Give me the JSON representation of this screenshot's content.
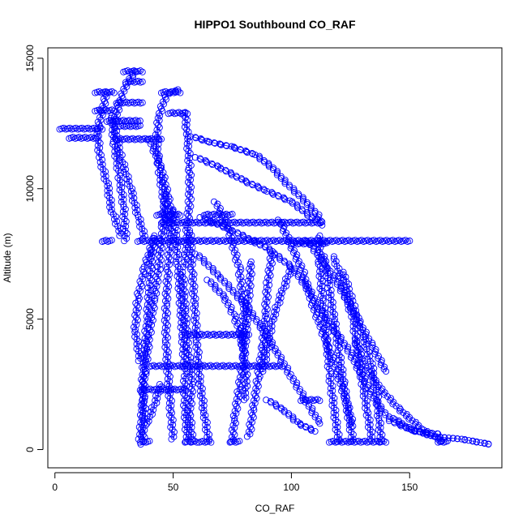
{
  "chart_data": {
    "type": "scatter",
    "title": "HIPPO1 Southbound CO_RAF",
    "xlabel": "CO_RAF",
    "ylabel": "Altitude (m)",
    "xlim": [
      -3,
      189
    ],
    "ylim": [
      -700,
      15400
    ],
    "xticks": [
      0,
      50,
      100,
      150
    ],
    "yticks": [
      0,
      5000,
      10000,
      15000
    ],
    "grid": false,
    "legend": "none",
    "marker": "open-circle",
    "connected": true,
    "series_color": "#0000ff",
    "series": [
      {
        "profiles": [
          [
            [
              37,
              200
            ],
            [
              38,
              1200
            ],
            [
              37,
              2500
            ],
            [
              38,
              3800
            ],
            [
              39,
              5000
            ],
            [
              40,
              6200
            ],
            [
              41,
              7400
            ],
            [
              42,
              8200
            ]
          ],
          [
            [
              36,
              400
            ],
            [
              37,
              1600
            ],
            [
              38,
              3000
            ],
            [
              40,
              4400
            ],
            [
              42,
              5800
            ],
            [
              44,
              7000
            ],
            [
              45,
              8000
            ],
            [
              46,
              8900
            ],
            [
              47,
              9800
            ]
          ],
          [
            [
              50,
              400
            ],
            [
              49,
              1500
            ],
            [
              48,
              2800
            ],
            [
              47,
              4200
            ],
            [
              47,
              5600
            ],
            [
              48,
              7000
            ],
            [
              49,
              8200
            ],
            [
              50,
              9200
            ]
          ],
          [
            [
              56,
              300
            ],
            [
              55,
              1600
            ],
            [
              55,
              3000
            ],
            [
              54,
              4400
            ],
            [
              53,
              5800
            ],
            [
              52,
              7200
            ],
            [
              51,
              8500
            ]
          ],
          [
            [
              58,
              300
            ],
            [
              57,
              1400
            ],
            [
              58,
              2600
            ],
            [
              56,
              4000
            ],
            [
              55,
              5400
            ],
            [
              54,
              6800
            ]
          ],
          [
            [
              65,
              300
            ],
            [
              63,
              1500
            ],
            [
              61,
              2800
            ],
            [
              60,
              4200
            ],
            [
              59,
              5600
            ],
            [
              58,
              7000
            ],
            [
              57,
              8400
            ]
          ],
          [
            [
              75,
              300
            ],
            [
              76,
              1200
            ],
            [
              78,
              2400
            ],
            [
              80,
              3600
            ],
            [
              81,
              4800
            ],
            [
              82,
              6000
            ],
            [
              83,
              7200
            ]
          ],
          [
            [
              82,
              500
            ],
            [
              84,
              1600
            ],
            [
              86,
              2800
            ],
            [
              88,
              4000
            ],
            [
              89,
              5200
            ],
            [
              90,
              6400
            ],
            [
              92,
              7600
            ]
          ],
          [
            [
              120,
              300
            ],
            [
              118,
              1600
            ],
            [
              116,
              3000
            ],
            [
              115,
              4400
            ],
            [
              113,
              5800
            ],
            [
              112,
              7200
            ],
            [
              112,
              8200
            ]
          ],
          [
            [
              126,
              300
            ],
            [
              124,
              1400
            ],
            [
              122,
              2600
            ],
            [
              120,
              3800
            ],
            [
              118,
              5000
            ],
            [
              116,
              6200
            ],
            [
              114,
              7400
            ]
          ],
          [
            [
              134,
              400
            ],
            [
              132,
              1500
            ],
            [
              130,
              2600
            ],
            [
              128,
              3800
            ],
            [
              126,
              5000
            ],
            [
              122,
              6200
            ],
            [
              118,
              7400
            ]
          ],
          [
            [
              138,
              300
            ],
            [
              137,
              1200
            ],
            [
              136,
              2200
            ],
            [
              134,
              3200
            ],
            [
              130,
              4400
            ],
            [
              126,
              5600
            ],
            [
              122,
              6800
            ]
          ],
          [
            [
              164,
              300
            ],
            [
              155,
              800
            ],
            [
              145,
              1600
            ],
            [
              137,
              2400
            ],
            [
              131,
              3200
            ],
            [
              127,
              4200
            ]
          ],
          [
            [
              184,
              200
            ],
            [
              172,
              400
            ],
            [
              160,
              500
            ],
            [
              150,
              800
            ],
            [
              143,
              1200
            ]
          ],
          [
            [
              36,
              3400
            ],
            [
              34,
              4600
            ],
            [
              35,
              5800
            ],
            [
              38,
              7000
            ],
            [
              42,
              8100
            ]
          ],
          [
            [
              38,
              8100
            ],
            [
              35,
              9000
            ],
            [
              32,
              10000
            ],
            [
              28,
              11200
            ],
            [
              25,
              12400
            ],
            [
              27,
              13200
            ],
            [
              30,
              14000
            ],
            [
              34,
              14500
            ]
          ],
          [
            [
              28,
              8200
            ],
            [
              24,
              9200
            ],
            [
              22,
              10200
            ],
            [
              19,
              11200
            ],
            [
              18,
              12200
            ],
            [
              20,
              13000
            ],
            [
              22,
              13700
            ]
          ],
          [
            [
              30,
              8000
            ],
            [
              29,
              9400
            ],
            [
              27,
              10600
            ],
            [
              25,
              11800
            ],
            [
              24,
              12800
            ]
          ],
          [
            [
              48,
              8400
            ],
            [
              46,
              9600
            ],
            [
              44,
              10800
            ],
            [
              43,
              11800
            ],
            [
              44,
              12800
            ],
            [
              47,
              13600
            ],
            [
              52,
              13800
            ]
          ],
          [
            [
              55,
              7000
            ],
            [
              56,
              8500
            ],
            [
              57,
              9600
            ],
            [
              57,
              10800
            ],
            [
              56,
              12000
            ],
            [
              55,
              12900
            ]
          ],
          [
            [
              40,
              11900
            ],
            [
              45,
              10800
            ],
            [
              48,
              9600
            ],
            [
              50,
              8800
            ]
          ],
          [
            [
              58,
              12000
            ],
            [
              65,
              11800
            ],
            [
              75,
              11600
            ],
            [
              85,
              11300
            ],
            [
              92,
              10800
            ],
            [
              98,
              10200
            ],
            [
              105,
              9600
            ],
            [
              111,
              9000
            ],
            [
              113,
              8600
            ]
          ],
          [
            [
              60,
              11200
            ],
            [
              70,
              10800
            ],
            [
              80,
              10300
            ],
            [
              90,
              9900
            ],
            [
              100,
              9500
            ],
            [
              110,
              8800
            ]
          ],
          [
            [
              62,
              8900
            ],
            [
              75,
              8400
            ],
            [
              90,
              7700
            ],
            [
              100,
              7000
            ],
            [
              107,
              6200
            ],
            [
              112,
              5400
            ],
            [
              118,
              4600
            ],
            [
              125,
              3700
            ],
            [
              130,
              2800
            ],
            [
              136,
              1800
            ],
            [
              142,
              1100
            ],
            [
              152,
              700
            ],
            [
              162,
              600
            ]
          ],
          [
            [
              60,
              7500
            ],
            [
              70,
              6600
            ],
            [
              80,
              5600
            ],
            [
              88,
              4600
            ],
            [
              94,
              3700
            ],
            [
              100,
              2800
            ],
            [
              106,
              1900
            ],
            [
              112,
              1000
            ]
          ],
          [
            [
              65,
              6500
            ],
            [
              72,
              5800
            ],
            [
              76,
              5100
            ],
            [
              79,
              4300
            ],
            [
              80,
              3500
            ],
            [
              81,
              2700
            ],
            [
              80,
              1900
            ]
          ],
          [
            [
              68,
              9500
            ],
            [
              74,
              8300
            ],
            [
              78,
              6900
            ],
            [
              80,
              5400
            ],
            [
              79,
              4000
            ]
          ],
          [
            [
              95,
              8800
            ],
            [
              100,
              7800
            ],
            [
              105,
              6800
            ],
            [
              108,
              5800
            ],
            [
              112,
              4800
            ],
            [
              116,
              3800
            ],
            [
              120,
              2800
            ],
            [
              124,
              1600
            ],
            [
              126,
              900
            ]
          ],
          [
            [
              100,
              7000
            ],
            [
              96,
              6000
            ],
            [
              92,
              5000
            ],
            [
              90,
              4000
            ],
            [
              88,
              3000
            ]
          ],
          [
            [
              107,
              8000
            ],
            [
              115,
              7000
            ],
            [
              122,
              6000
            ],
            [
              128,
              5000
            ],
            [
              134,
              4000
            ],
            [
              140,
              3000
            ]
          ],
          [
            [
              45,
              2500
            ],
            [
              42,
              1700
            ],
            [
              39,
              1000
            ]
          ],
          [
            [
              90,
              1900
            ],
            [
              97,
              1500
            ],
            [
              103,
              1000
            ],
            [
              110,
              700
            ]
          ]
        ],
        "levels": [
          {
            "y": 8000,
            "x": [
              35,
              150
            ]
          },
          {
            "y": 8700,
            "x": [
              45,
              113
            ]
          },
          {
            "y": 7900,
            "x": [
              100,
              115
            ]
          },
          {
            "y": 9000,
            "x": [
              43,
              53
            ]
          },
          {
            "y": 9000,
            "x": [
              63,
              75
            ]
          },
          {
            "y": 8000,
            "x": [
              20,
              24
            ]
          },
          {
            "y": 14500,
            "x": [
              29,
              37
            ]
          },
          {
            "y": 14100,
            "x": [
              31,
              37
            ]
          },
          {
            "y": 13700,
            "x": [
              17,
              25
            ]
          },
          {
            "y": 13300,
            "x": [
              26,
              37
            ]
          },
          {
            "y": 13000,
            "x": [
              17,
              25
            ]
          },
          {
            "y": 12600,
            "x": [
              22,
              36
            ]
          },
          {
            "y": 12400,
            "x": [
              27,
              36
            ]
          },
          {
            "y": 12300,
            "x": [
              2,
              20
            ]
          },
          {
            "y": 11950,
            "x": [
              6,
              18
            ]
          },
          {
            "y": 11900,
            "x": [
              26,
              45
            ]
          },
          {
            "y": 13700,
            "x": [
              45,
              53
            ]
          },
          {
            "y": 12900,
            "x": [
              48,
              56
            ]
          },
          {
            "y": 300,
            "x": [
              36,
              40
            ]
          },
          {
            "y": 300,
            "x": [
              55,
              60
            ]
          },
          {
            "y": 300,
            "x": [
              61,
              66
            ]
          },
          {
            "y": 300,
            "x": [
              74,
              78
            ]
          },
          {
            "y": 300,
            "x": [
              116,
              140
            ]
          },
          {
            "y": 300,
            "x": [
              162,
              166
            ]
          },
          {
            "y": 4400,
            "x": [
              55,
              82
            ]
          },
          {
            "y": 3200,
            "x": [
              40,
              96
            ]
          },
          {
            "y": 2300,
            "x": [
              36,
              55
            ]
          },
          {
            "y": 1900,
            "x": [
              104,
              112
            ]
          }
        ]
      }
    ]
  }
}
